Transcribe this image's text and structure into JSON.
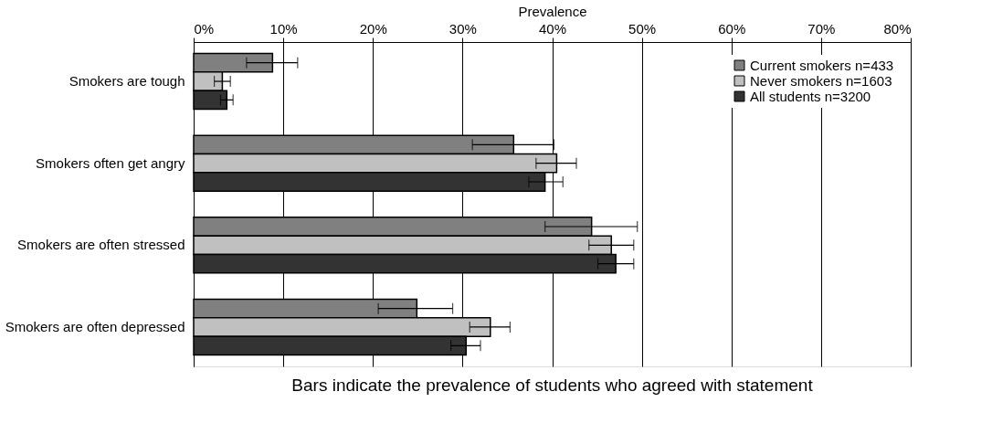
{
  "chart_data": {
    "type": "bar",
    "orientation": "horizontal",
    "xlabel": "Prevalence",
    "categories": [
      "Smokers are tough",
      "Smokers often get angry",
      "Smokers are often stressed",
      "Smokers are often depressed"
    ],
    "series": [
      {
        "name": "Current smokers n=433",
        "color": "#808080",
        "values": [
          8.8,
          35.7,
          44.4,
          24.9
        ],
        "errors": [
          [
            5.9,
            11.6
          ],
          [
            31.1,
            40.2
          ],
          [
            39.2,
            49.5
          ],
          [
            20.6,
            28.9
          ]
        ]
      },
      {
        "name": "Never smokers n=1603",
        "color": "#c0c0c0",
        "values": [
          3.2,
          40.5,
          46.6,
          33.1
        ],
        "errors": [
          [
            2.3,
            4.1
          ],
          [
            38.2,
            42.7
          ],
          [
            44.1,
            49.1
          ],
          [
            30.8,
            35.3
          ]
        ]
      },
      {
        "name": "All students n=3200",
        "color": "#333333",
        "values": [
          3.7,
          39.2,
          47.1,
          30.4
        ],
        "errors": [
          [
            3.0,
            4.4
          ],
          [
            37.4,
            41.2
          ],
          [
            45.1,
            49.1
          ],
          [
            28.7,
            32.0
          ]
        ]
      }
    ],
    "xlim": [
      0,
      80
    ],
    "xticks": [
      {
        "value": 0,
        "label": "0%"
      },
      {
        "value": 10,
        "label": "10%"
      },
      {
        "value": 20,
        "label": "20%"
      },
      {
        "value": 30,
        "label": "30%"
      },
      {
        "value": 40,
        "label": "40%"
      },
      {
        "value": 50,
        "label": "50%"
      },
      {
        "value": 60,
        "label": "60%"
      },
      {
        "value": 70,
        "label": "70%"
      },
      {
        "value": 80,
        "label": "80%"
      }
    ],
    "grid": "x",
    "legend": "top right",
    "annotations": [
      "Bars indicate the prevalence of students who agreed with statement"
    ]
  }
}
